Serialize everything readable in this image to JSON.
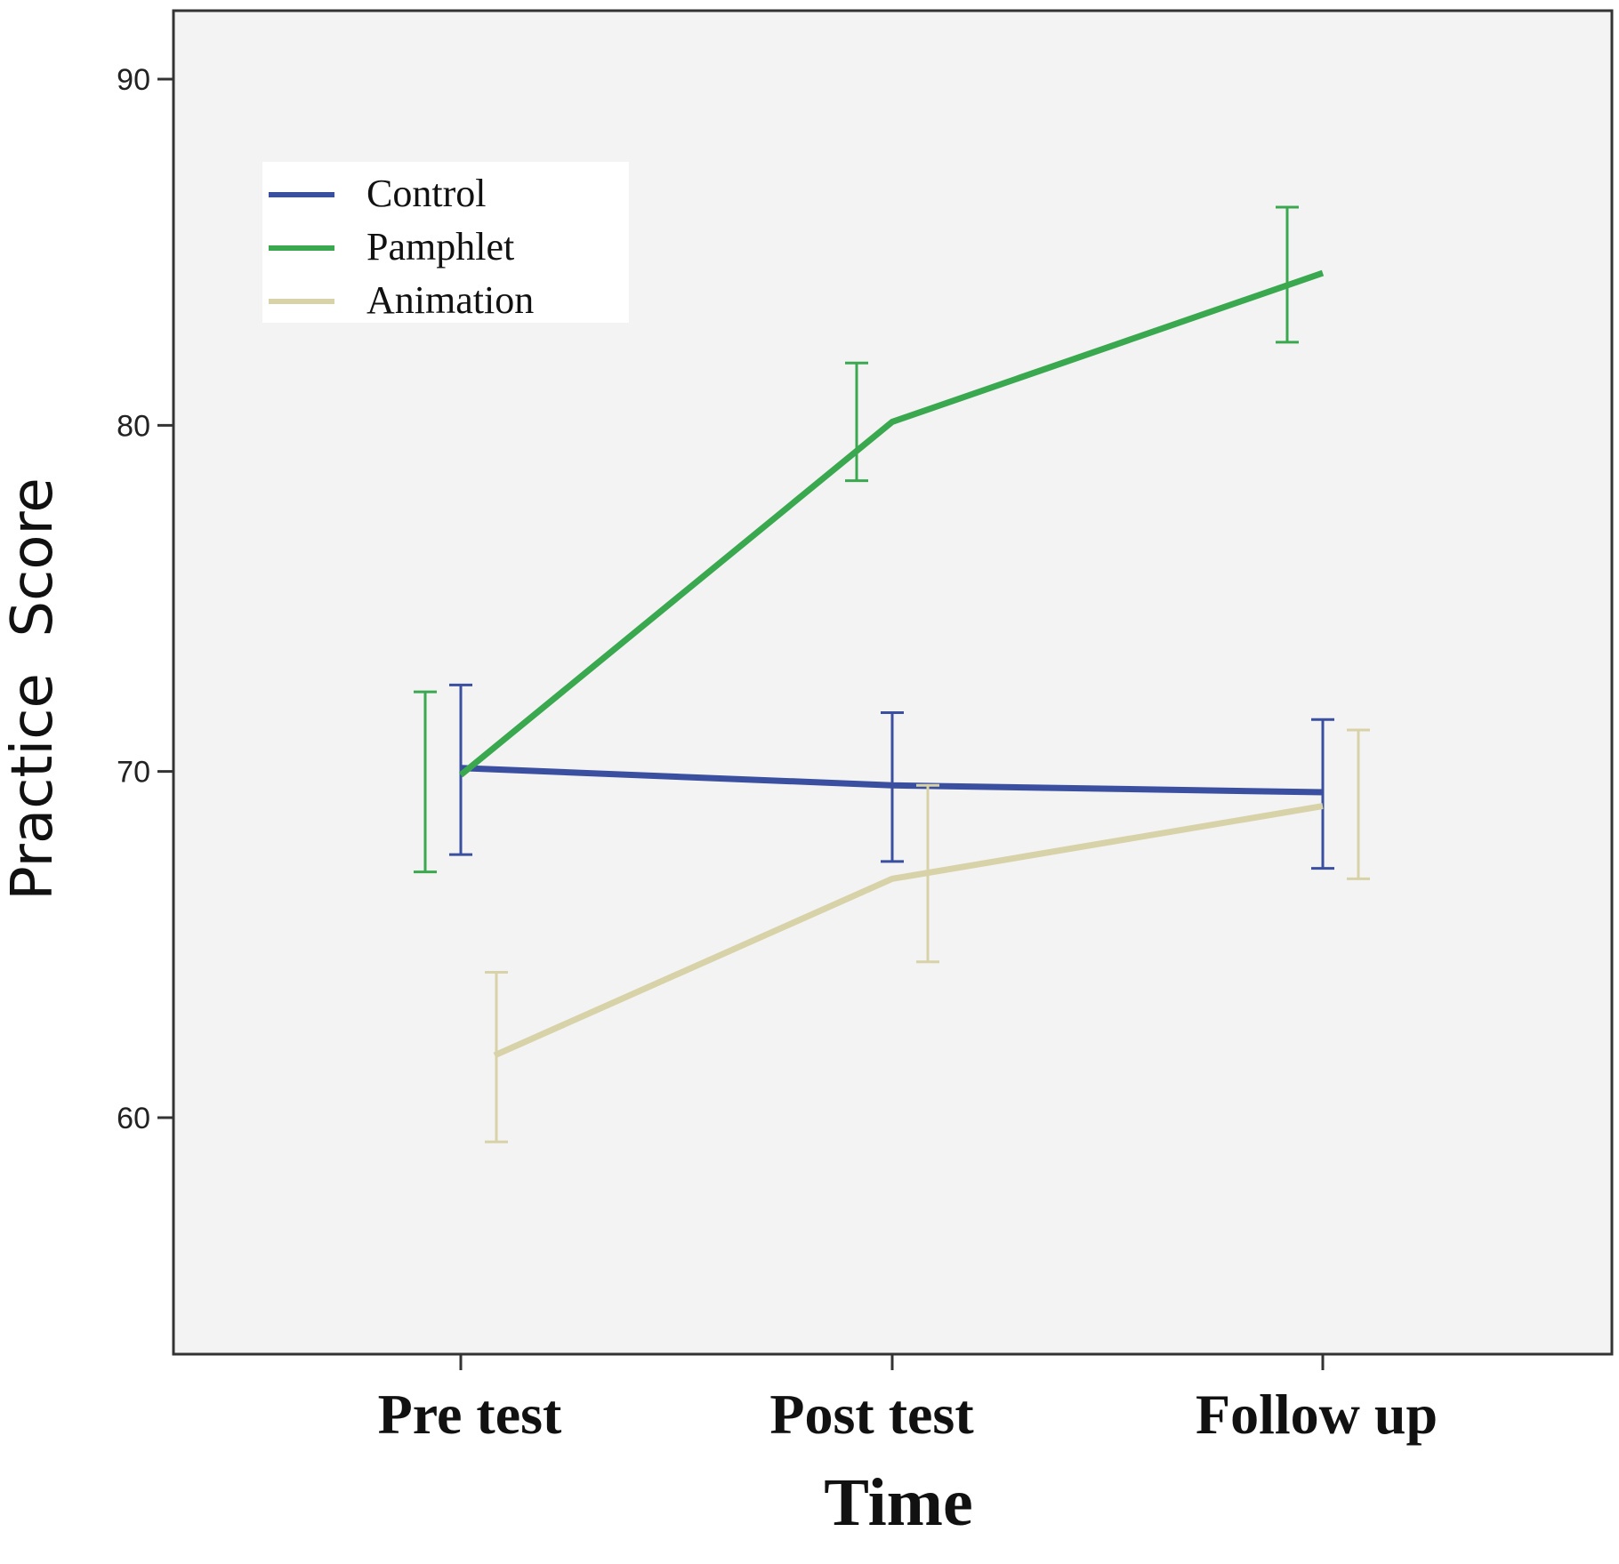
{
  "chart_data": {
    "type": "line",
    "title": "",
    "xlabel": "Time",
    "ylabel": "Practice  Score",
    "categories": [
      "Pre test",
      "Post test",
      "Follow up"
    ],
    "ylim": [
      53,
      92
    ],
    "yticks": [
      60,
      70,
      80,
      90
    ],
    "grid": false,
    "legend_position": "top-left",
    "background": "#f3f3f3",
    "series": [
      {
        "name": "Control",
        "color": "#3a4fa0",
        "values": [
          70.1,
          69.6,
          69.4
        ],
        "ci_low": [
          67.6,
          67.4,
          67.2
        ],
        "ci_high": [
          72.5,
          71.7,
          71.5
        ]
      },
      {
        "name": "Pamphlet",
        "color": "#3aa84f",
        "values": [
          69.9,
          80.1,
          84.4
        ],
        "ci_low": [
          67.1,
          78.4,
          82.4
        ],
        "ci_high": [
          72.3,
          81.8,
          86.3
        ]
      },
      {
        "name": "Animation",
        "color": "#d8d2a8",
        "values": [
          61.8,
          66.9,
          69.0
        ],
        "ci_low": [
          59.3,
          64.5,
          66.9
        ],
        "ci_high": [
          64.2,
          69.6,
          71.2
        ]
      }
    ]
  }
}
